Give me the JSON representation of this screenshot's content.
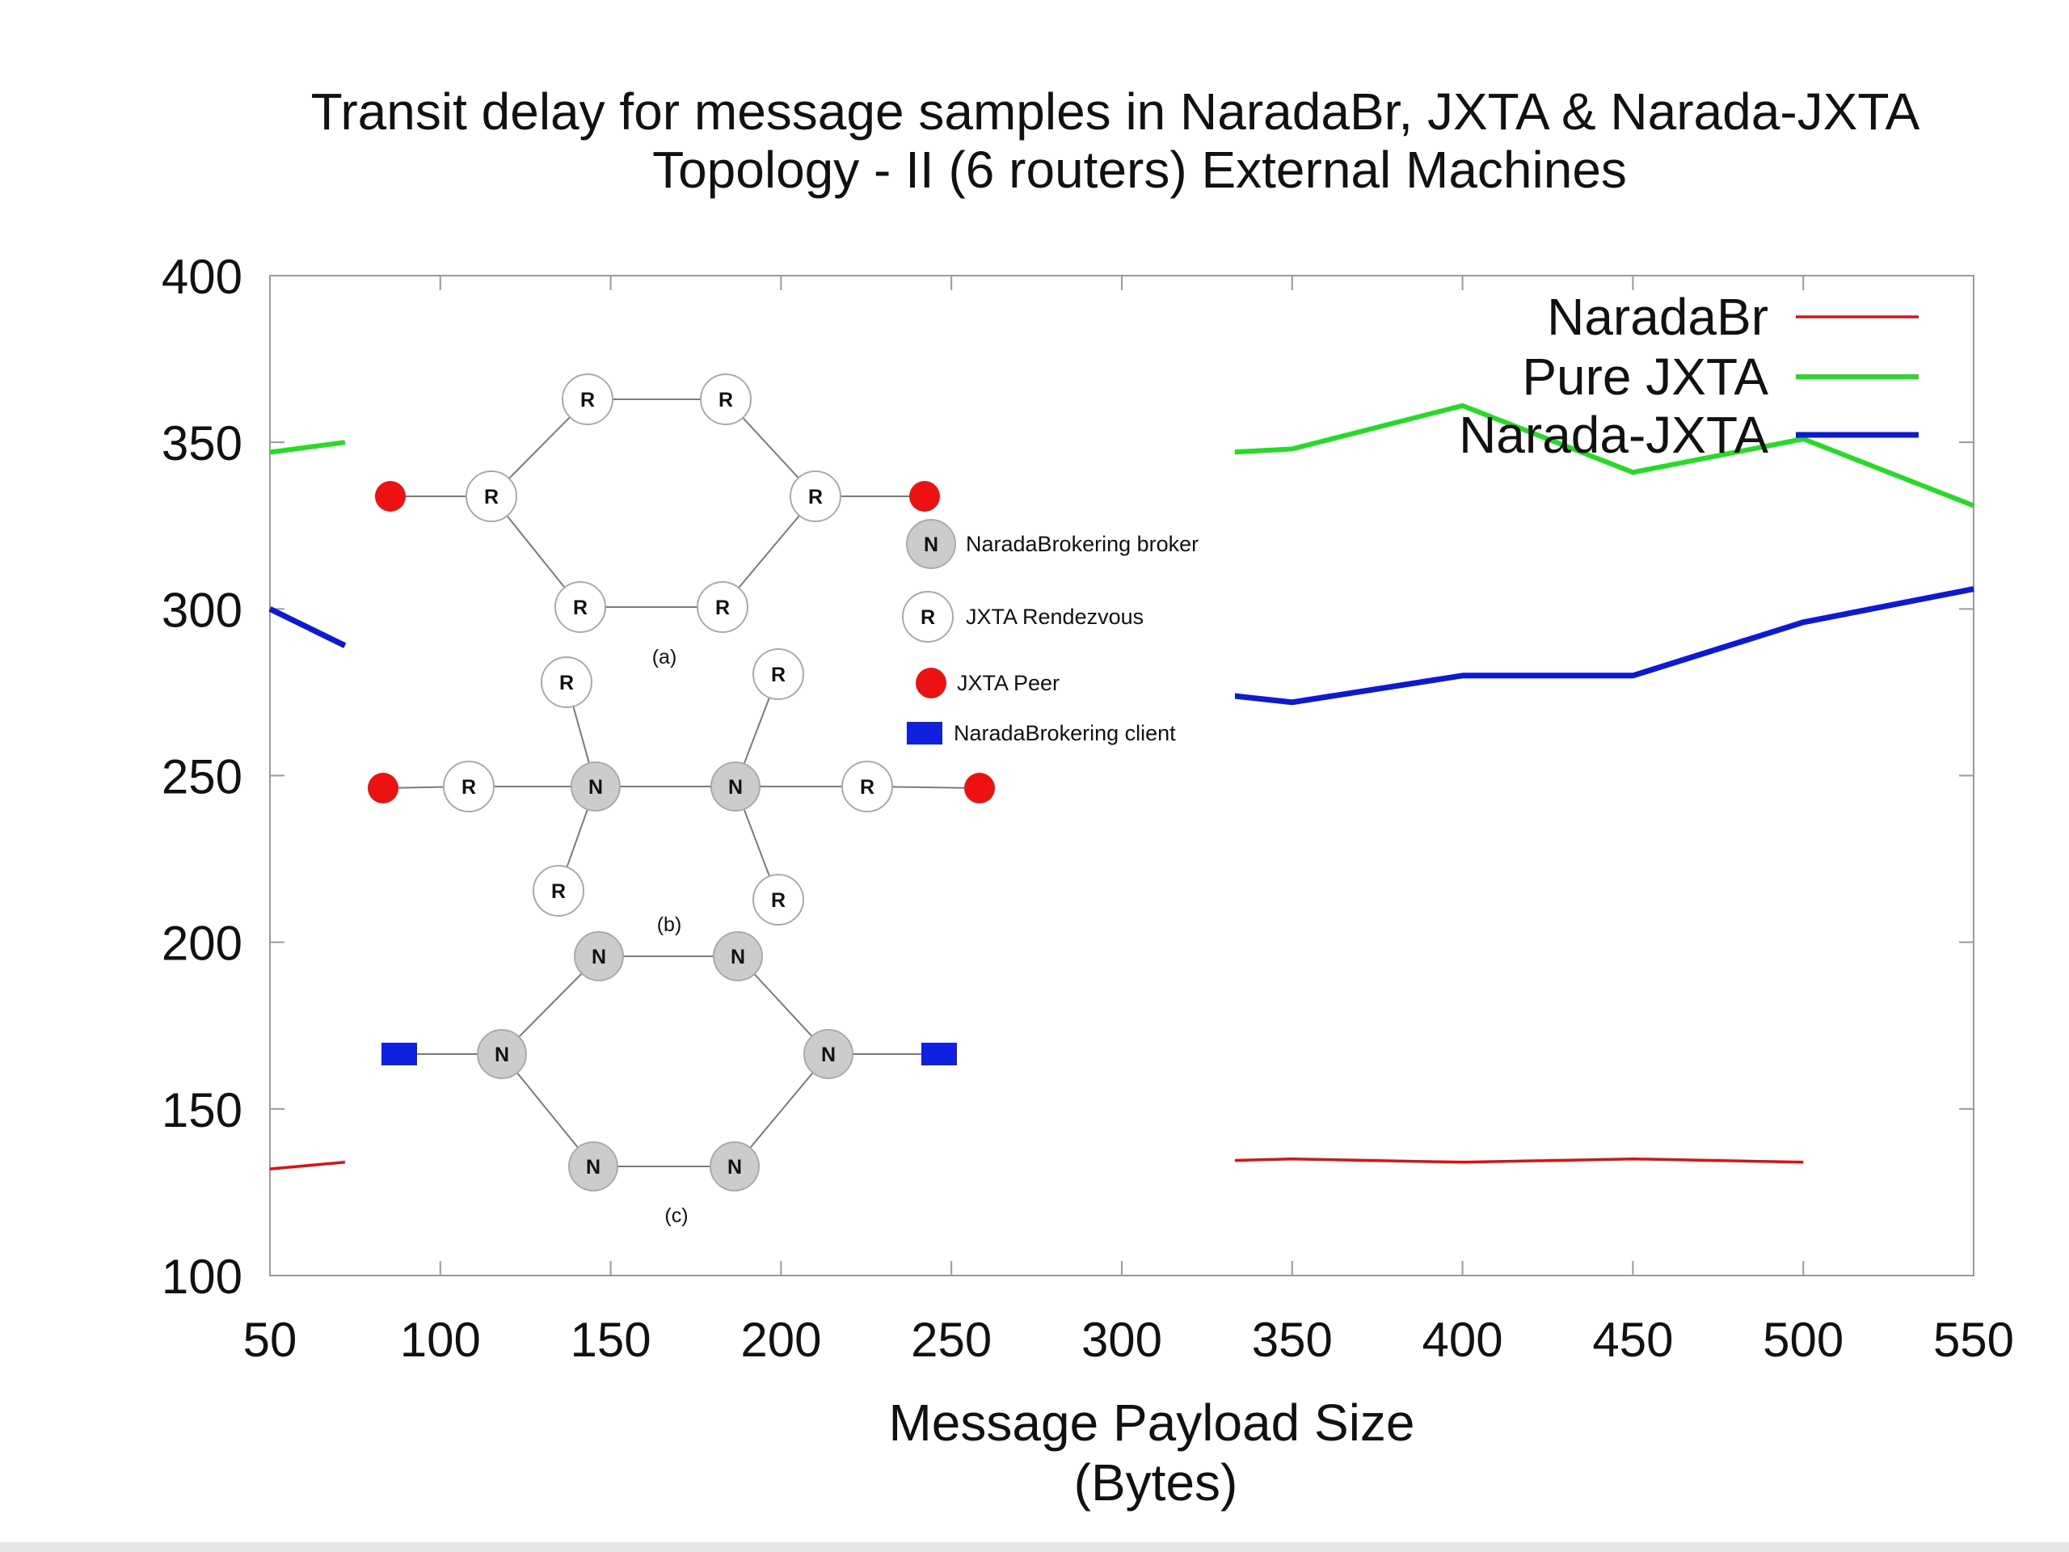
{
  "chart_data": {
    "type": "line",
    "title": "Transit delay for message samples in NaradaBr, JXTA & Narada-JXTA",
    "subtitle": "Topology - II (6 routers) External Machines",
    "xlabel": "Message Payload Size",
    "xlabel_unit": "(Bytes)",
    "ylabel": "",
    "xlim": [
      50,
      550
    ],
    "ylim": [
      100,
      400
    ],
    "xticks": [
      50,
      100,
      150,
      200,
      250,
      300,
      350,
      400,
      450,
      500,
      550
    ],
    "yticks": [
      100,
      150,
      200,
      250,
      300,
      350,
      400
    ],
    "legend_position": "top-right",
    "series": [
      {
        "name": "NaradaBr",
        "color": "#e01010",
        "x": [
          50,
          72,
          332,
          350,
          400,
          450,
          500
        ],
        "values": [
          132,
          134,
          134.5,
          135,
          134,
          135,
          134
        ]
      },
      {
        "name": "Pure JXTA",
        "color": "#22dd22",
        "x": [
          50,
          72,
          332,
          350,
          400,
          450,
          500,
          550
        ],
        "values": [
          347,
          350,
          347,
          348,
          361,
          341,
          351,
          331
        ]
      },
      {
        "name": "Narada-JXTA",
        "color": "#0a1ad8",
        "x": [
          50,
          72,
          332,
          350,
          400,
          450,
          500,
          550
        ],
        "values": [
          300,
          289,
          274,
          272,
          280,
          280,
          296,
          306
        ]
      }
    ]
  },
  "inset": {
    "node_labels": {
      "rendezvous": "R",
      "broker": "N"
    },
    "captions": {
      "a": "(a)",
      "b": "(b)",
      "c": "(c)"
    },
    "legend": {
      "broker": "NaradaBrokering broker",
      "rendezvous": "JXTA Rendezvous",
      "peer": "JXTA Peer",
      "client": "NaradaBrokering client"
    },
    "colors": {
      "peer": "#ee1111",
      "client": "#1020e0",
      "broker": "#cccccc",
      "rendezvous": "#ffffff"
    }
  }
}
